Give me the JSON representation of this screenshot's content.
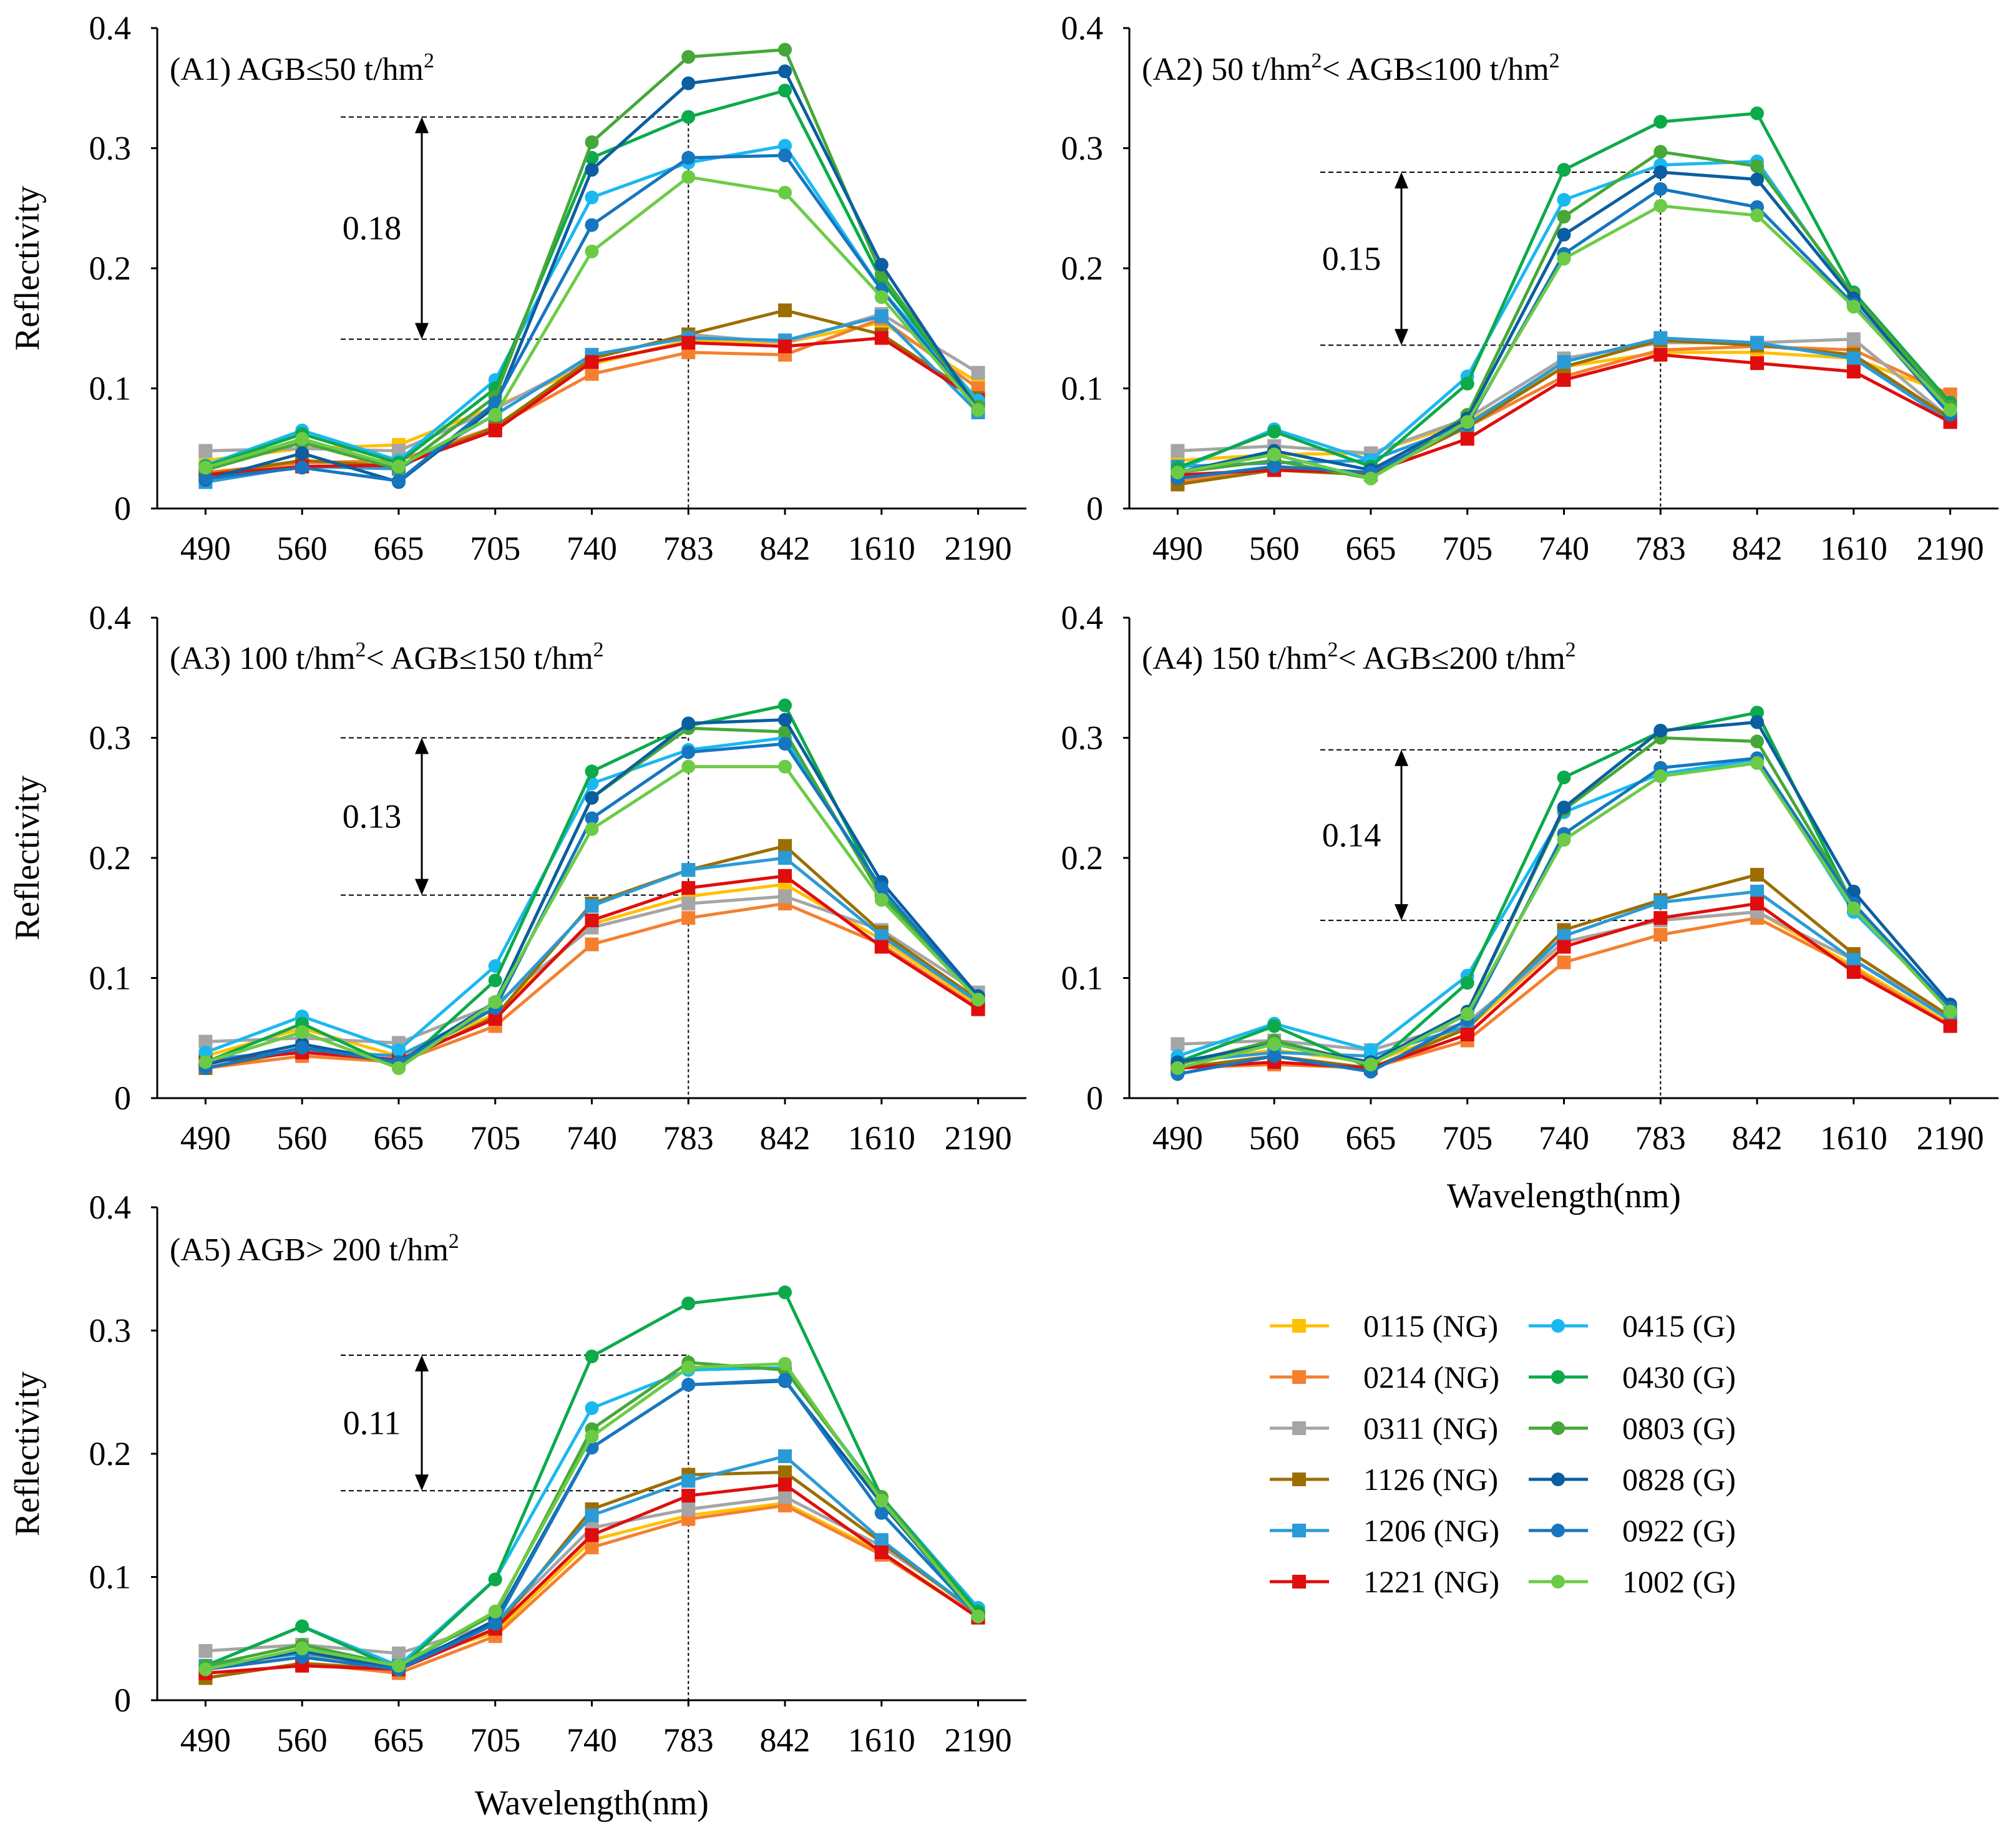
{
  "figure": {
    "ylabel": "Reflectivity",
    "xlabel": "Wavelength(nm)",
    "categories": [
      "490",
      "560",
      "665",
      "705",
      "740",
      "783",
      "842",
      "1610",
      "2190"
    ],
    "yticks": [
      "0",
      "0.1",
      "0.2",
      "0.3",
      "0.4"
    ]
  },
  "series_styles": [
    {
      "name": "0115 (NG)",
      "color": "#FFC000",
      "marker": "square"
    },
    {
      "name": "0214 (NG)",
      "color": "#F4802F",
      "marker": "square"
    },
    {
      "name": "0311 (NG)",
      "color": "#A5A5A5",
      "marker": "square"
    },
    {
      "name": "1126 (NG)",
      "color": "#9C6E00",
      "marker": "square"
    },
    {
      "name": "1206 (NG)",
      "color": "#2A9BD6",
      "marker": "square"
    },
    {
      "name": "1221 (NG)",
      "color": "#E00D0D",
      "marker": "square"
    },
    {
      "name": "0415 (G)",
      "color": "#1AB8F0",
      "marker": "circle"
    },
    {
      "name": "0430 (G)",
      "color": "#0CAA4A",
      "marker": "circle"
    },
    {
      "name": "0803 (G)",
      "color": "#45A838",
      "marker": "circle"
    },
    {
      "name": "0828 (G)",
      "color": "#0B5EA0",
      "marker": "circle"
    },
    {
      "name": "0922 (G)",
      "color": "#1676BF",
      "marker": "circle"
    },
    {
      "name": "1002 (G)",
      "color": "#6CCB45",
      "marker": "circle"
    }
  ],
  "chart_data": [
    {
      "type": "line",
      "title_prefix": "(A1) AGB≤50 t/hm",
      "title_sup": "2",
      "title_mid": "",
      "title_mid_sup": "",
      "title_end": "",
      "categories": [
        "490",
        "560",
        "665",
        "705",
        "740",
        "783",
        "842",
        "1610",
        "2190"
      ],
      "ylim": [
        0,
        0.4
      ],
      "xlabel": "",
      "ylabel": "Reflectivity",
      "difference_label": "0.18",
      "difference_range": [
        0.141,
        0.326
      ],
      "reference_category": "783",
      "series": [
        {
          "name": "0115 (NG)",
          "values": [
            0.04,
            0.05,
            0.053,
            0.085,
            0.12,
            0.14,
            0.138,
            0.155,
            0.105
          ]
        },
        {
          "name": "0214 (NG)",
          "values": [
            0.03,
            0.038,
            0.04,
            0.068,
            0.112,
            0.13,
            0.128,
            0.158,
            0.1
          ]
        },
        {
          "name": "0311 (NG)",
          "values": [
            0.048,
            0.05,
            0.048,
            0.083,
            0.125,
            0.145,
            0.138,
            0.162,
            0.113
          ]
        },
        {
          "name": "1126 (NG)",
          "values": [
            0.028,
            0.04,
            0.035,
            0.068,
            0.125,
            0.145,
            0.165,
            0.145,
            0.092
          ]
        },
        {
          "name": "1206 (NG)",
          "values": [
            0.022,
            0.035,
            0.033,
            0.078,
            0.128,
            0.142,
            0.14,
            0.16,
            0.08
          ]
        },
        {
          "name": "1221 (NG)",
          "values": [
            0.028,
            0.035,
            0.036,
            0.065,
            0.122,
            0.138,
            0.135,
            0.142,
            0.09
          ]
        },
        {
          "name": "0415 (G)",
          "values": [
            0.036,
            0.065,
            0.04,
            0.107,
            0.259,
            0.288,
            0.302,
            0.182,
            0.09
          ]
        },
        {
          "name": "0430 (G)",
          "values": [
            0.035,
            0.062,
            0.038,
            0.1,
            0.292,
            0.326,
            0.348,
            0.19,
            0.085
          ]
        },
        {
          "name": "0803 (G)",
          "values": [
            0.032,
            0.055,
            0.033,
            0.093,
            0.305,
            0.376,
            0.382,
            0.195,
            0.085
          ]
        },
        {
          "name": "0828 (G)",
          "values": [
            0.024,
            0.046,
            0.022,
            0.085,
            0.282,
            0.354,
            0.364,
            0.203,
            0.082
          ]
        },
        {
          "name": "0922 (G)",
          "values": [
            0.025,
            0.034,
            0.023,
            0.088,
            0.236,
            0.292,
            0.294,
            0.182,
            0.082
          ]
        },
        {
          "name": "1002 (G)",
          "values": [
            0.034,
            0.058,
            0.035,
            0.078,
            0.214,
            0.276,
            0.263,
            0.176,
            0.082
          ]
        }
      ]
    },
    {
      "type": "line",
      "title_prefix": "(A2) 50 t/hm",
      "title_sup": "2",
      "title_mid": "< AGB≤100 t/hm",
      "title_mid_sup": "2",
      "title_end": "",
      "categories": [
        "490",
        "560",
        "665",
        "705",
        "740",
        "783",
        "842",
        "1610",
        "2190"
      ],
      "ylim": [
        0,
        0.4
      ],
      "xlabel": "",
      "ylabel": "",
      "difference_label": "0.15",
      "difference_range": [
        0.136,
        0.28
      ],
      "reference_category": "783",
      "series": [
        {
          "name": "0115 (NG)",
          "values": [
            0.04,
            0.045,
            0.046,
            0.072,
            0.118,
            0.13,
            0.13,
            0.125,
            0.095
          ]
        },
        {
          "name": "0214 (NG)",
          "values": [
            0.022,
            0.035,
            0.03,
            0.068,
            0.11,
            0.132,
            0.135,
            0.132,
            0.095
          ]
        },
        {
          "name": "0311 (NG)",
          "values": [
            0.048,
            0.052,
            0.046,
            0.075,
            0.125,
            0.138,
            0.138,
            0.141,
            0.075
          ]
        },
        {
          "name": "1126 (NG)",
          "values": [
            0.02,
            0.032,
            0.028,
            0.068,
            0.118,
            0.14,
            0.136,
            0.128,
            0.075
          ]
        },
        {
          "name": "1206 (NG)",
          "values": [
            0.035,
            0.038,
            0.04,
            0.07,
            0.122,
            0.142,
            0.138,
            0.125,
            0.072
          ]
        },
        {
          "name": "1221 (NG)",
          "values": [
            0.028,
            0.032,
            0.03,
            0.058,
            0.107,
            0.128,
            0.121,
            0.114,
            0.072
          ]
        },
        {
          "name": "0415 (G)",
          "values": [
            0.032,
            0.066,
            0.04,
            0.11,
            0.257,
            0.286,
            0.289,
            0.175,
            0.085
          ]
        },
        {
          "name": "0430 (G)",
          "values": [
            0.034,
            0.064,
            0.035,
            0.104,
            0.282,
            0.322,
            0.329,
            0.18,
            0.088
          ]
        },
        {
          "name": "0803 (G)",
          "values": [
            0.03,
            0.04,
            0.025,
            0.078,
            0.243,
            0.297,
            0.285,
            0.178,
            0.085
          ]
        },
        {
          "name": "0828 (G)",
          "values": [
            0.03,
            0.048,
            0.032,
            0.075,
            0.228,
            0.28,
            0.274,
            0.175,
            0.08
          ]
        },
        {
          "name": "0922 (G)",
          "values": [
            0.025,
            0.035,
            0.03,
            0.07,
            0.212,
            0.266,
            0.251,
            0.17,
            0.078
          ]
        },
        {
          "name": "1002 (G)",
          "values": [
            0.03,
            0.045,
            0.025,
            0.072,
            0.208,
            0.252,
            0.244,
            0.168,
            0.082
          ]
        }
      ]
    },
    {
      "type": "line",
      "title_prefix": "(A3) 100 t/hm",
      "title_sup": "2",
      "title_mid": "< AGB≤150 t/hm",
      "title_mid_sup": "2",
      "title_end": "",
      "categories": [
        "490",
        "560",
        "665",
        "705",
        "740",
        "783",
        "842",
        "1610",
        "2190"
      ],
      "ylim": [
        0,
        0.4
      ],
      "xlabel": "",
      "ylabel": "Reflectivity",
      "difference_label": "0.13",
      "difference_range": [
        0.169,
        0.3
      ],
      "reference_category": "783",
      "series": [
        {
          "name": "0115 (NG)",
          "values": [
            0.035,
            0.058,
            0.035,
            0.07,
            0.145,
            0.168,
            0.178,
            0.132,
            0.078
          ]
        },
        {
          "name": "0214 (NG)",
          "values": [
            0.025,
            0.035,
            0.03,
            0.06,
            0.128,
            0.15,
            0.162,
            0.128,
            0.075
          ]
        },
        {
          "name": "0311 (NG)",
          "values": [
            0.047,
            0.05,
            0.046,
            0.078,
            0.142,
            0.162,
            0.168,
            0.14,
            0.088
          ]
        },
        {
          "name": "1126 (NG)",
          "values": [
            0.025,
            0.04,
            0.03,
            0.068,
            0.162,
            0.19,
            0.21,
            0.138,
            0.082
          ]
        },
        {
          "name": "1206 (NG)",
          "values": [
            0.032,
            0.04,
            0.035,
            0.075,
            0.16,
            0.19,
            0.2,
            0.135,
            0.08
          ]
        },
        {
          "name": "1221 (NG)",
          "values": [
            0.03,
            0.038,
            0.032,
            0.066,
            0.148,
            0.175,
            0.185,
            0.126,
            0.074
          ]
        },
        {
          "name": "0415 (G)",
          "values": [
            0.038,
            0.068,
            0.04,
            0.11,
            0.262,
            0.29,
            0.3,
            0.172,
            0.085
          ]
        },
        {
          "name": "0430 (G)",
          "values": [
            0.03,
            0.062,
            0.025,
            0.098,
            0.272,
            0.31,
            0.327,
            0.17,
            0.083
          ]
        },
        {
          "name": "0803 (G)",
          "values": [
            0.03,
            0.055,
            0.025,
            0.08,
            0.25,
            0.308,
            0.305,
            0.168,
            0.082
          ]
        },
        {
          "name": "0828 (G)",
          "values": [
            0.028,
            0.045,
            0.03,
            0.08,
            0.25,
            0.312,
            0.315,
            0.18,
            0.085
          ]
        },
        {
          "name": "0922 (G)",
          "values": [
            0.025,
            0.042,
            0.03,
            0.075,
            0.233,
            0.288,
            0.295,
            0.175,
            0.082
          ]
        },
        {
          "name": "1002 (G)",
          "values": [
            0.03,
            0.055,
            0.025,
            0.08,
            0.224,
            0.276,
            0.276,
            0.165,
            0.082
          ]
        }
      ]
    },
    {
      "type": "line",
      "title_prefix": "(A4) 150 t/hm",
      "title_sup": "2",
      "title_mid": "< AGB≤200 t/hm",
      "title_mid_sup": "2",
      "title_end": "",
      "categories": [
        "490",
        "560",
        "665",
        "705",
        "740",
        "783",
        "842",
        "1610",
        "2190"
      ],
      "ylim": [
        0,
        0.4
      ],
      "xlabel": "Wavelength(nm)",
      "ylabel": "",
      "difference_label": "0.14",
      "difference_range": [
        0.148,
        0.29
      ],
      "reference_category": "783",
      "series": [
        {
          "name": "0115 (NG)",
          "values": [
            0.03,
            0.04,
            0.03,
            0.058,
            0.13,
            0.148,
            0.155,
            0.11,
            0.062
          ]
        },
        {
          "name": "0214 (NG)",
          "values": [
            0.025,
            0.028,
            0.025,
            0.048,
            0.113,
            0.136,
            0.15,
            0.108,
            0.06
          ]
        },
        {
          "name": "0311 (NG)",
          "values": [
            0.045,
            0.048,
            0.04,
            0.063,
            0.13,
            0.148,
            0.155,
            0.115,
            0.068
          ]
        },
        {
          "name": "1126 (NG)",
          "values": [
            0.025,
            0.035,
            0.025,
            0.058,
            0.14,
            0.165,
            0.186,
            0.12,
            0.068
          ]
        },
        {
          "name": "1206 (NG)",
          "values": [
            0.03,
            0.038,
            0.035,
            0.06,
            0.135,
            0.163,
            0.172,
            0.115,
            0.065
          ]
        },
        {
          "name": "1221 (NG)",
          "values": [
            0.025,
            0.03,
            0.025,
            0.053,
            0.126,
            0.15,
            0.162,
            0.105,
            0.06
          ]
        },
        {
          "name": "0415 (G)",
          "values": [
            0.035,
            0.062,
            0.04,
            0.102,
            0.238,
            0.27,
            0.282,
            0.155,
            0.075
          ]
        },
        {
          "name": "0430 (G)",
          "values": [
            0.03,
            0.06,
            0.025,
            0.096,
            0.267,
            0.305,
            0.321,
            0.16,
            0.075
          ]
        },
        {
          "name": "0803 (G)",
          "values": [
            0.028,
            0.048,
            0.028,
            0.072,
            0.24,
            0.3,
            0.297,
            0.162,
            0.072
          ]
        },
        {
          "name": "0828 (G)",
          "values": [
            0.03,
            0.045,
            0.03,
            0.072,
            0.242,
            0.306,
            0.313,
            0.172,
            0.078
          ]
        },
        {
          "name": "0922 (G)",
          "values": [
            0.02,
            0.035,
            0.022,
            0.065,
            0.22,
            0.275,
            0.283,
            0.162,
            0.075
          ]
        },
        {
          "name": "1002 (G)",
          "values": [
            0.025,
            0.045,
            0.028,
            0.07,
            0.215,
            0.268,
            0.279,
            0.158,
            0.072
          ]
        }
      ]
    },
    {
      "type": "line",
      "title_prefix": "(A5) AGB> 200 t/hm",
      "title_sup": "2",
      "title_mid": "",
      "title_mid_sup": "",
      "title_end": "",
      "categories": [
        "490",
        "560",
        "665",
        "705",
        "740",
        "783",
        "842",
        "1610",
        "2190"
      ],
      "ylim": [
        0,
        0.4
      ],
      "xlabel": "Wavelength(nm)",
      "ylabel": "Reflectivity",
      "difference_label": "0.11",
      "difference_range": [
        0.17,
        0.28
      ],
      "reference_category": "783",
      "series": [
        {
          "name": "0115 (NG)",
          "values": [
            0.025,
            0.035,
            0.03,
            0.055,
            0.13,
            0.15,
            0.16,
            0.12,
            0.068
          ]
        },
        {
          "name": "0214 (NG)",
          "values": [
            0.018,
            0.03,
            0.022,
            0.052,
            0.124,
            0.147,
            0.158,
            0.118,
            0.068
          ]
        },
        {
          "name": "0311 (NG)",
          "values": [
            0.04,
            0.045,
            0.038,
            0.062,
            0.14,
            0.155,
            0.165,
            0.125,
            0.072
          ]
        },
        {
          "name": "1126 (NG)",
          "values": [
            0.018,
            0.03,
            0.025,
            0.058,
            0.155,
            0.183,
            0.185,
            0.128,
            0.07
          ]
        },
        {
          "name": "1206 (NG)",
          "values": [
            0.028,
            0.038,
            0.028,
            0.062,
            0.15,
            0.178,
            0.198,
            0.13,
            0.07
          ]
        },
        {
          "name": "1221 (NG)",
          "values": [
            0.022,
            0.028,
            0.025,
            0.058,
            0.134,
            0.166,
            0.175,
            0.12,
            0.067
          ]
        },
        {
          "name": "0415 (G)",
          "values": [
            0.028,
            0.06,
            0.028,
            0.098,
            0.237,
            0.268,
            0.27,
            0.165,
            0.075
          ]
        },
        {
          "name": "0430 (G)",
          "values": [
            0.028,
            0.06,
            0.025,
            0.098,
            0.279,
            0.322,
            0.331,
            0.165,
            0.072
          ]
        },
        {
          "name": "0803 (G)",
          "values": [
            0.028,
            0.045,
            0.028,
            0.07,
            0.22,
            0.274,
            0.268,
            0.165,
            0.068
          ]
        },
        {
          "name": "0828 (G)",
          "values": [
            0.025,
            0.04,
            0.025,
            0.065,
            0.205,
            0.256,
            0.259,
            0.16,
            0.068
          ]
        },
        {
          "name": "0922 (G)",
          "values": [
            0.025,
            0.035,
            0.025,
            0.062,
            0.205,
            0.256,
            0.26,
            0.152,
            0.068
          ]
        },
        {
          "name": "1002 (G)",
          "values": [
            0.025,
            0.042,
            0.028,
            0.072,
            0.214,
            0.27,
            0.273,
            0.162,
            0.068
          ]
        }
      ]
    }
  ]
}
